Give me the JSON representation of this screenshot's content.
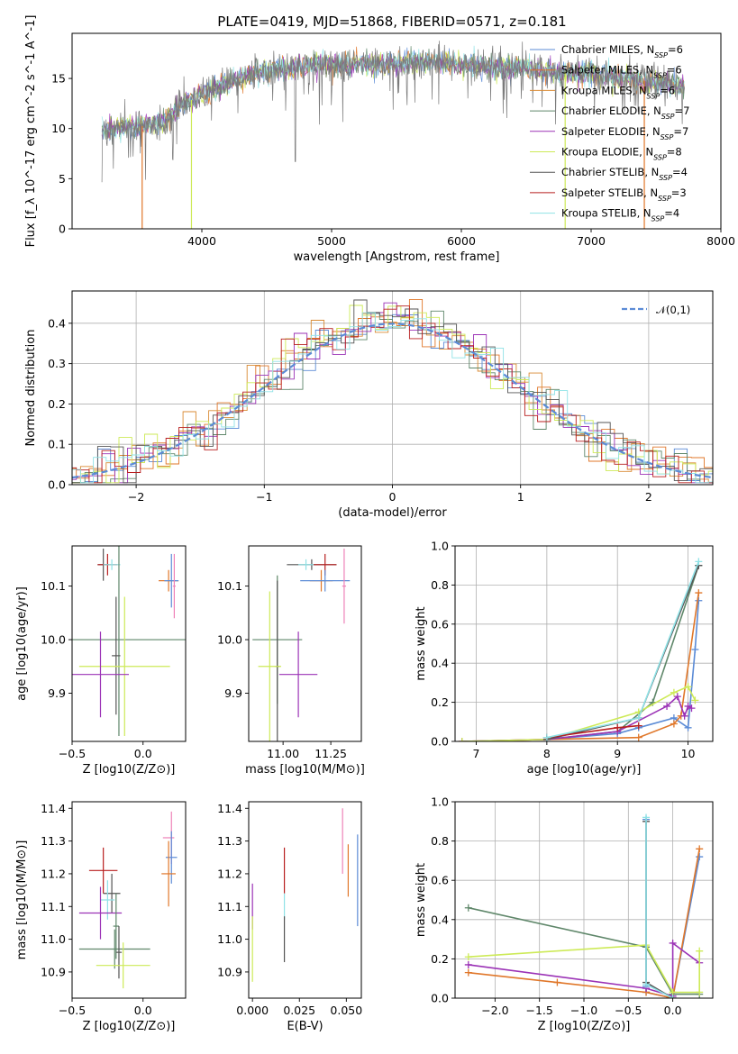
{
  "title": "PLATE=0419, MJD=51868, FIBERID=0571, z=0.181",
  "colors": {
    "chabrier_miles": "#5b8bd6",
    "salpeter_miles": "#e0772a",
    "kroupa_miles": "#d98a33",
    "chabrier_elodie": "#5f876a",
    "salpeter_elodie": "#9b32b6",
    "kroupa_elodie": "#cdea57",
    "chabrier_stelib": "#555555",
    "salpeter_stelib": "#b81f1f",
    "kroupa_stelib": "#8fe2e6",
    "pink": "#ee82b8",
    "data_spectrum": "#7a7a7a"
  },
  "chart_data": [
    {
      "id": "spectrum",
      "type": "line",
      "title": "PLATE=0419, MJD=51868, FIBERID=0571, z=0.181",
      "xlabel": "wavelength [Angstrom, rest frame]",
      "ylabel": "Flux [f_λ 10^-17 erg cm^-2 s^-1 A^-1]",
      "xlim": [
        3000,
        8000
      ],
      "ylim": [
        0,
        19.5
      ],
      "xticks": [
        4000,
        5000,
        6000,
        7000,
        8000
      ],
      "yticks": [
        0,
        5,
        10,
        15
      ],
      "legend_position": "right",
      "legend": [
        {
          "name": "Chabrier MILES, N_SSP=6",
          "color": "#5b8bd6"
        },
        {
          "name": "Salpeter MILES, N_SSP=6",
          "color": "#e0772a"
        },
        {
          "name": "Kroupa MILES, N_SSP=6",
          "color": "#d98a33"
        },
        {
          "name": "Chabrier ELODIE, N_SSP=7",
          "color": "#5f876a"
        },
        {
          "name": "Salpeter ELODIE, N_SSP=7",
          "color": "#9b32b6"
        },
        {
          "name": "Kroupa ELODIE, N_SSP=8",
          "color": "#cdea57"
        },
        {
          "name": "Chabrier STELIB, N_SSP=4",
          "color": "#555555"
        },
        {
          "name": "Salpeter STELIB, N_SSP=3",
          "color": "#b81f1f"
        },
        {
          "name": "Kroupa STELIB, N_SSP=4",
          "color": "#8fe2e6"
        }
      ],
      "spectrum_anchors": {
        "x": [
          3200,
          3500,
          3700,
          3850,
          3950,
          4100,
          4300,
          4500,
          4800,
          5000,
          5300,
          5600,
          5900,
          6200,
          6500,
          6800,
          7000,
          7300,
          7700
        ],
        "y": [
          9.8,
          10.2,
          10.5,
          12.5,
          13.0,
          14.0,
          15.0,
          15.8,
          16.3,
          16.5,
          16.4,
          16.6,
          16.5,
          16.2,
          16.0,
          15.6,
          15.5,
          15.0,
          14.2
        ]
      },
      "dropouts": [
        {
          "x": 3540,
          "color": "#e0772a"
        },
        {
          "x": 3920,
          "color": "#cdea57"
        },
        {
          "x": 6800,
          "color": "#cdea57"
        },
        {
          "x": 7410,
          "color": "#e0772a"
        }
      ]
    },
    {
      "id": "residuals",
      "type": "bar",
      "xlabel": "(data-model)/error",
      "ylabel": "Normed distribution",
      "xlim": [
        -2.5,
        2.5
      ],
      "ylim": [
        0,
        0.48
      ],
      "xticks": [
        -2,
        -1,
        0,
        1,
        2
      ],
      "yticks": [
        0.0,
        0.1,
        0.2,
        0.3,
        0.4
      ],
      "grid": true,
      "legend": "𝒩(0,1)",
      "legend_position": "top-right",
      "bin_width": 0.1
    },
    {
      "id": "age_vs_Z",
      "type": "scatter",
      "xlabel": "Z [log10(Z/Z⊙)]",
      "ylabel": "age [log10(age/yr)]",
      "xlim": [
        -0.5,
        0.3
      ],
      "ylim": [
        9.81,
        10.175
      ],
      "xticks": [
        -0.5,
        0.0
      ],
      "yticks": [
        9.9,
        10.0,
        10.1
      ],
      "points": [
        {
          "x": -0.28,
          "y": 10.14,
          "xerr": 0.04,
          "yerr": 0.03,
          "color": "#555555"
        },
        {
          "x": -0.25,
          "y": 10.14,
          "xerr": 0.07,
          "yerr": 0.02,
          "color": "#b81f1f"
        },
        {
          "x": -0.22,
          "y": 10.14,
          "xerr": 0.06,
          "yerr": 0.01,
          "color": "#8fe2e6"
        },
        {
          "x": 0.18,
          "y": 10.11,
          "xerr": 0.07,
          "yerr": 0.02,
          "color": "#e0772a"
        },
        {
          "x": 0.2,
          "y": 10.11,
          "xerr": 0.05,
          "yerr": 0.05,
          "color": "#5b8bd6"
        },
        {
          "x": 0.22,
          "y": 10.1,
          "xerr": 0.01,
          "yerr": 0.06,
          "color": "#ee82b8"
        },
        {
          "x": -0.17,
          "y": 10.0,
          "xerr": 0.47,
          "yerr": 0.18,
          "color": "#5f876a"
        },
        {
          "x": -0.19,
          "y": 9.97,
          "xerr": 0.03,
          "yerr": 0.11,
          "color": "#555555"
        },
        {
          "x": -0.13,
          "y": 9.95,
          "xerr": 0.32,
          "yerr": 0.13,
          "color": "#cdea57"
        },
        {
          "x": -0.3,
          "y": 9.935,
          "xerr": 0.2,
          "yerr": 0.08,
          "color": "#9b32b6"
        }
      ]
    },
    {
      "id": "age_vs_mass",
      "type": "scatter",
      "xlabel": "mass [log10(M/M⊙)]",
      "ylabel": "",
      "xlim": [
        10.82,
        11.41
      ],
      "ylim": [
        9.81,
        10.175
      ],
      "xticks": [
        11.0,
        11.25
      ],
      "yticks": [
        9.9,
        10.0,
        10.1
      ],
      "points": [
        {
          "x": 11.15,
          "y": 10.14,
          "xerr": 0.13,
          "yerr": 0.01,
          "color": "#555555"
        },
        {
          "x": 11.22,
          "y": 10.14,
          "xerr": 0.06,
          "yerr": 0.02,
          "color": "#b81f1f"
        },
        {
          "x": 11.12,
          "y": 10.14,
          "xerr": 0.04,
          "yerr": 0.01,
          "color": "#8fe2e6"
        },
        {
          "x": 11.2,
          "y": 10.11,
          "xerr": 0.06,
          "yerr": 0.02,
          "color": "#e0772a"
        },
        {
          "x": 11.22,
          "y": 10.11,
          "xerr": 0.13,
          "yerr": 0.02,
          "color": "#5b8bd6"
        },
        {
          "x": 11.32,
          "y": 10.1,
          "xerr": 0.01,
          "yerr": 0.07,
          "color": "#ee82b8"
        },
        {
          "x": 10.97,
          "y": 10.0,
          "xerr": 0.13,
          "yerr": 0.12,
          "color": "#5f876a"
        },
        {
          "x": 10.97,
          "y": 9.95,
          "xerr": 0.01,
          "yerr": 0.16,
          "color": "#555555"
        },
        {
          "x": 10.93,
          "y": 9.95,
          "xerr": 0.06,
          "yerr": 0.14,
          "color": "#cdea57"
        },
        {
          "x": 11.08,
          "y": 9.935,
          "xerr": 0.1,
          "yerr": 0.08,
          "color": "#9b32b6"
        }
      ]
    },
    {
      "id": "weight_vs_age",
      "type": "line",
      "xlabel": "age [log10(age/yr)]",
      "ylabel": "mass weight",
      "xlim": [
        6.7,
        10.35
      ],
      "ylim": [
        0,
        1
      ],
      "xticks": [
        7,
        8,
        9,
        10
      ],
      "yticks": [
        0.0,
        0.2,
        0.4,
        0.6,
        0.8,
        1.0
      ],
      "grid": true,
      "series": [
        {
          "color": "#5b8bd6",
          "x": [
            8.0,
            9.0,
            9.3,
            9.8,
            10.0,
            10.1,
            10.15
          ],
          "y": [
            0.01,
            0.04,
            0.07,
            0.12,
            0.07,
            0.47,
            0.72
          ]
        },
        {
          "color": "#e0772a",
          "x": [
            6.8,
            8.0,
            9.3,
            9.8,
            9.9,
            10.15
          ],
          "y": [
            0.0,
            0.01,
            0.02,
            0.09,
            0.13,
            0.76
          ]
        },
        {
          "color": "#5f876a",
          "x": [
            8.0,
            9.0,
            9.5,
            10.15
          ],
          "y": [
            0.01,
            0.05,
            0.2,
            0.9
          ]
        },
        {
          "color": "#9b32b6",
          "x": [
            6.8,
            8.0,
            9.0,
            9.7,
            9.85,
            9.95,
            10.0,
            10.05
          ],
          "y": [
            0.0,
            0.01,
            0.05,
            0.18,
            0.23,
            0.13,
            0.18,
            0.17
          ]
        },
        {
          "color": "#cdea57",
          "x": [
            6.8,
            8.0,
            9.3,
            9.8,
            10.0,
            10.1
          ],
          "y": [
            0.0,
            0.01,
            0.15,
            0.25,
            0.28,
            0.21
          ]
        },
        {
          "color": "#555555",
          "x": [
            8.0,
            9.3,
            10.15
          ],
          "y": [
            0.01,
            0.12,
            0.9
          ]
        },
        {
          "color": "#b81f1f",
          "x": [
            8.0,
            9.0,
            9.3
          ],
          "y": [
            0.02,
            0.07,
            0.08
          ]
        },
        {
          "color": "#8fe2e6",
          "x": [
            8.0,
            9.3,
            10.15
          ],
          "y": [
            0.02,
            0.12,
            0.92
          ]
        }
      ]
    },
    {
      "id": "mass_vs_Z",
      "type": "scatter",
      "xlabel": "Z [log10(Z/Z⊙)]",
      "ylabel": "mass [log10(M/M⊙)]",
      "xlim": [
        -0.5,
        0.3
      ],
      "ylim": [
        10.82,
        11.42
      ],
      "xticks": [
        -0.5,
        0.0
      ],
      "yticks": [
        10.9,
        11.0,
        11.1,
        11.2,
        11.3,
        11.4
      ],
      "points": [
        {
          "x": 0.18,
          "y": 11.31,
          "xerr": 0.04,
          "yerr": 0.0,
          "color": "#ee82b8"
        },
        {
          "x": 0.2,
          "y": 11.31,
          "xerr": 0.0,
          "yerr": 0.08,
          "color": "#ee82b8"
        },
        {
          "x": 0.2,
          "y": 11.25,
          "xerr": 0.04,
          "yerr": 0.08,
          "color": "#5b8bd6"
        },
        {
          "x": 0.18,
          "y": 11.2,
          "xerr": 0.05,
          "yerr": 0.1,
          "color": "#e0772a"
        },
        {
          "x": -0.28,
          "y": 11.21,
          "xerr": 0.1,
          "yerr": 0.07,
          "color": "#b81f1f"
        },
        {
          "x": -0.22,
          "y": 11.14,
          "xerr": 0.06,
          "yerr": 0.06,
          "color": "#555555"
        },
        {
          "x": -0.25,
          "y": 11.12,
          "xerr": 0.05,
          "yerr": 0.06,
          "color": "#8fe2e6"
        },
        {
          "x": -0.3,
          "y": 11.08,
          "xerr": 0.15,
          "yerr": 0.08,
          "color": "#9b32b6"
        },
        {
          "x": -0.19,
          "y": 11.04,
          "xerr": 0.02,
          "yerr": 0.1,
          "color": "#5f876a"
        },
        {
          "x": -0.2,
          "y": 10.97,
          "xerr": 0.25,
          "yerr": 0.06,
          "color": "#5f876a"
        },
        {
          "x": -0.17,
          "y": 10.96,
          "xerr": 0.02,
          "yerr": 0.08,
          "color": "#555555"
        },
        {
          "x": -0.14,
          "y": 10.92,
          "xerr": 0.19,
          "yerr": 0.07,
          "color": "#cdea57"
        }
      ]
    },
    {
      "id": "mass_vs_ebv",
      "type": "scatter",
      "xlabel": "E(B-V)",
      "ylabel": "",
      "xlim": [
        -0.002,
        0.058
      ],
      "ylim": [
        10.82,
        11.42
      ],
      "xticks": [
        0.0,
        0.025,
        0.05
      ],
      "yticks": [
        10.9,
        11.0,
        11.1,
        11.2,
        11.3,
        11.4
      ],
      "points": [
        {
          "x": 0.0,
          "y": 11.1,
          "xerr": 0.0,
          "yerr": 0.07,
          "color": "#9b32b6"
        },
        {
          "x": 0.0,
          "y": 10.97,
          "xerr": 0.0,
          "yerr": 0.1,
          "color": "#cdea57"
        },
        {
          "x": 0.017,
          "y": 11.21,
          "xerr": 0.0,
          "yerr": 0.07,
          "color": "#b81f1f"
        },
        {
          "x": 0.017,
          "y": 11.1,
          "xerr": 0.0,
          "yerr": 0.04,
          "color": "#8fe2e6"
        },
        {
          "x": 0.017,
          "y": 11.0,
          "xerr": 0.0,
          "yerr": 0.07,
          "color": "#555555"
        },
        {
          "x": 0.048,
          "y": 11.3,
          "xerr": 0.0,
          "yerr": 0.1,
          "color": "#ee82b8"
        },
        {
          "x": 0.051,
          "y": 11.21,
          "xerr": 0.0,
          "yerr": 0.08,
          "color": "#e0772a"
        },
        {
          "x": 0.056,
          "y": 11.18,
          "xerr": 0.0,
          "yerr": 0.14,
          "color": "#5b8bd6"
        }
      ]
    },
    {
      "id": "weight_vs_Z",
      "type": "line",
      "xlabel": "Z [log10(Z/Z⊙)]",
      "ylabel": "mass weight",
      "xlim": [
        -2.45,
        0.45
      ],
      "ylim": [
        0,
        1
      ],
      "xticks": [
        -2.0,
        -1.5,
        -1.0,
        -0.5,
        0.0
      ],
      "yticks": [
        0.0,
        0.2,
        0.4,
        0.6,
        0.8,
        1.0
      ],
      "grid": true,
      "series": [
        {
          "color": "#5b8bd6",
          "x": [
            -0.3,
            -0.3,
            -0.3,
            0.0,
            0.3
          ],
          "y": [
            0.91,
            0.06,
            0.03,
            0.0,
            0.72
          ]
        },
        {
          "color": "#e0772a",
          "x": [
            -2.3,
            -1.3,
            -0.3,
            0.0,
            0.3
          ],
          "y": [
            0.13,
            0.08,
            0.03,
            0.0,
            0.76
          ]
        },
        {
          "color": "#5f876a",
          "x": [
            -2.3,
            -0.3,
            0.0,
            0.3
          ],
          "y": [
            0.46,
            0.26,
            0.02,
            0.02
          ]
        },
        {
          "color": "#9b32b6",
          "x": [
            -2.3,
            -0.3,
            0.0,
            0.0,
            0.3
          ],
          "y": [
            0.17,
            0.05,
            0.01,
            0.28,
            0.18
          ]
        },
        {
          "color": "#cdea57",
          "x": [
            -2.3,
            -0.3,
            0.0,
            0.3,
            0.3
          ],
          "y": [
            0.21,
            0.27,
            0.03,
            0.03,
            0.24
          ]
        },
        {
          "color": "#555555",
          "x": [
            -0.3,
            -0.3,
            0.0
          ],
          "y": [
            0.9,
            0.08,
            0.0
          ]
        },
        {
          "color": "#8fe2e6",
          "x": [
            -0.3,
            -0.3,
            0.0
          ],
          "y": [
            0.92,
            0.07,
            0.0
          ]
        }
      ]
    }
  ]
}
